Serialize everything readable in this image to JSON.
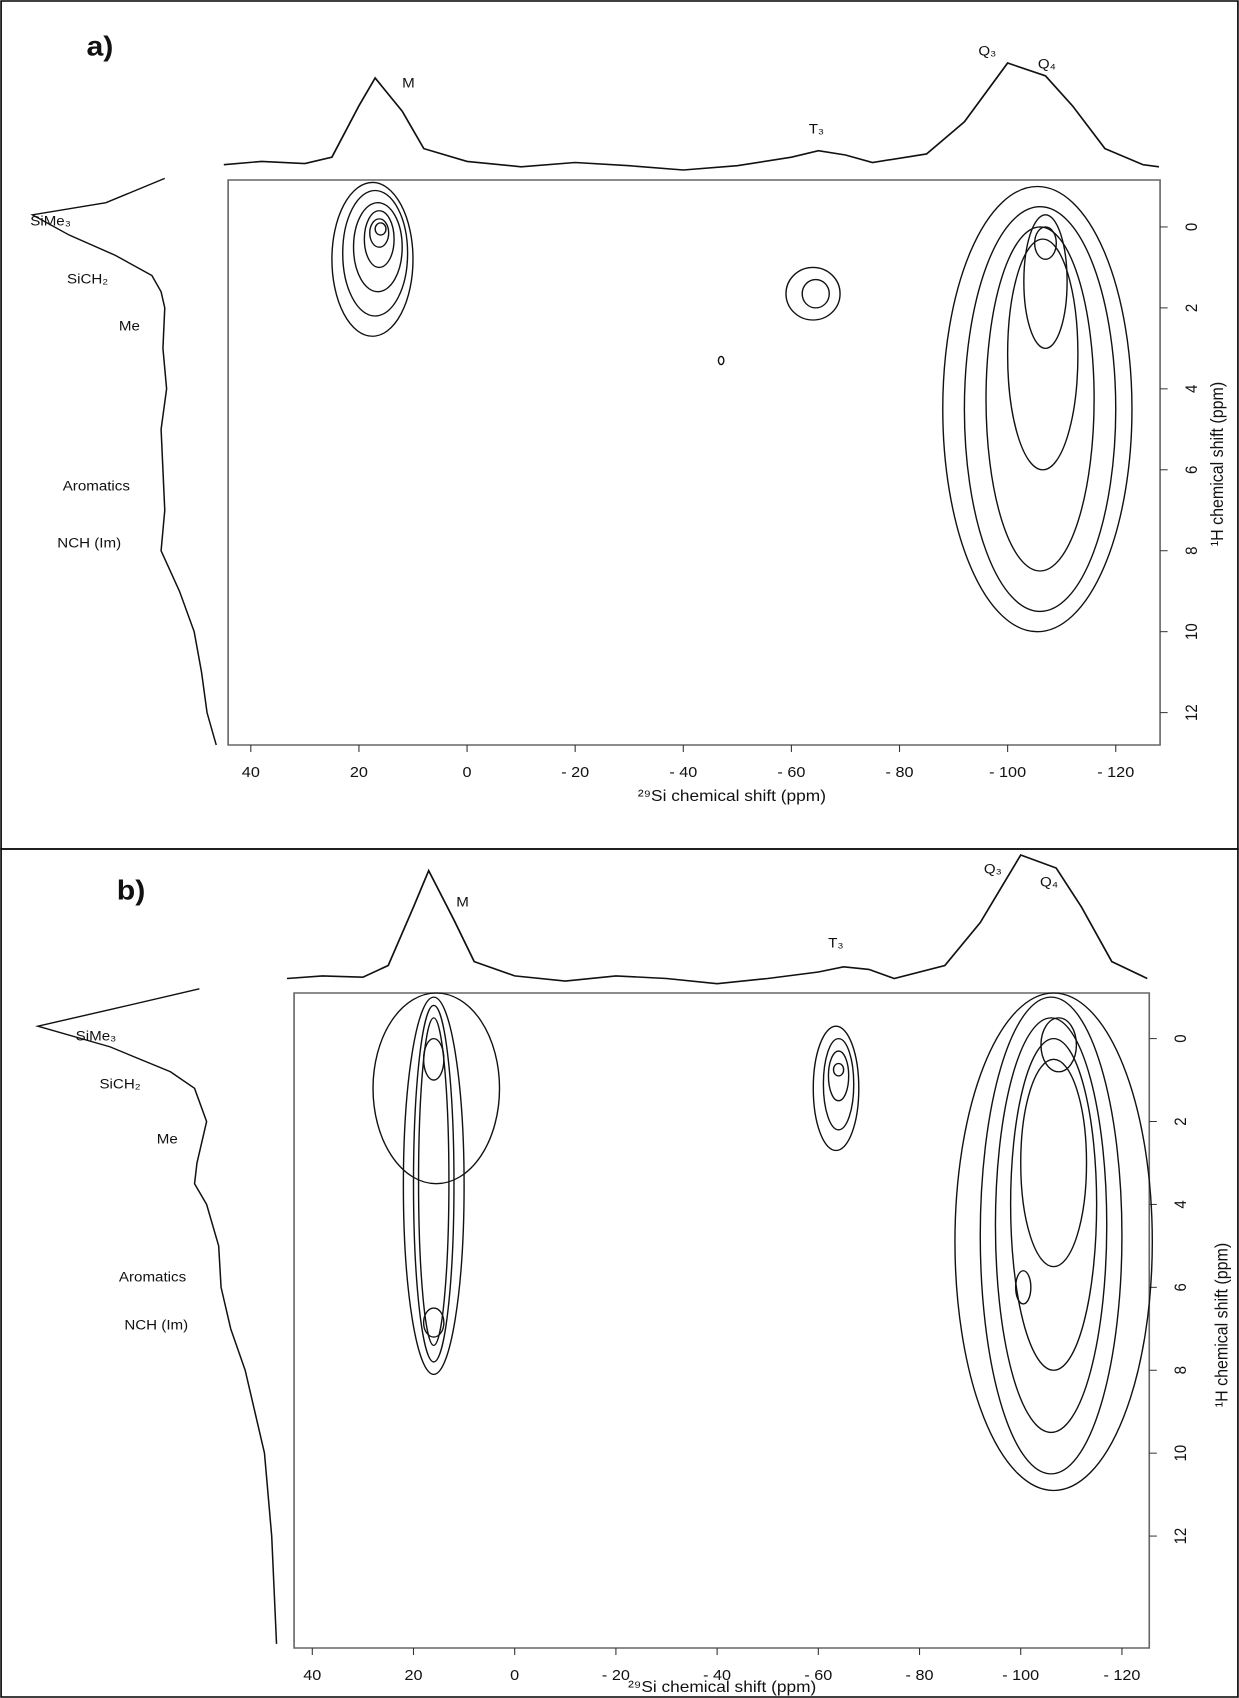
{
  "chart_data": [
    {
      "type": "contour",
      "panel_label": "a)",
      "x_label": "²⁹Si chemical shift (ppm)",
      "y_label": "¹H chemical shift (ppm)",
      "xlim": [
        44.2,
        -128.2
      ],
      "ylim": [
        -1.16,
        12.8
      ],
      "xticks": [
        40,
        20,
        0,
        {
          "value": -20,
          "label": "- 20"
        },
        {
          "value": -40,
          "label": "- 40"
        },
        {
          "value": -60,
          "label": "- 60"
        },
        {
          "value": -80,
          "label": "- 80"
        },
        {
          "value": -100,
          "label": "- 100"
        },
        {
          "value": -120,
          "label": "- 120"
        }
      ],
      "yticks": [
        0,
        2,
        4,
        6,
        8,
        10,
        12
      ],
      "top_labels": [
        "M",
        "T₃",
        "Q₃",
        "Q₄"
      ],
      "left_labels": [
        "SiMe₃",
        "SiCH₂",
        "Me",
        "Aromatics",
        "NCH (Im)"
      ],
      "projection_top": {
        "x": [
          45,
          38,
          30,
          25,
          20,
          17,
          12,
          8,
          0,
          -10,
          -20,
          -30,
          -40,
          -50,
          -60,
          -65,
          -70,
          -75,
          -85,
          -92,
          -100,
          -107,
          -112,
          -118,
          -125,
          -128
        ],
        "values": [
          5,
          8,
          6,
          12,
          60,
          86,
          55,
          20,
          8,
          3,
          7,
          4,
          0,
          4,
          12,
          18,
          14,
          7,
          15,
          45,
          100,
          88,
          60,
          20,
          5,
          3
        ]
      },
      "projection_left": {
        "y": [
          -1.2,
          -0.6,
          -0.3,
          0.2,
          0.7,
          1.2,
          1.6,
          2,
          3,
          4,
          5,
          6,
          7,
          8,
          9,
          10,
          11,
          12,
          12.8
        ],
        "values": [
          28,
          60,
          100,
          80,
          55,
          35,
          30,
          28,
          29,
          27,
          30,
          29,
          28,
          30,
          20,
          12,
          8,
          5,
          0
        ]
      },
      "contours": [
        {
          "x": [
            25,
            10
          ],
          "y": [
            -1.1,
            2.7
          ]
        },
        {
          "x": [
            23,
            11
          ],
          "y": [
            -0.9,
            2.2
          ]
        },
        {
          "x": [
            21,
            12
          ],
          "y": [
            -0.6,
            1.6
          ]
        },
        {
          "x": [
            19,
            13.5
          ],
          "y": [
            -0.4,
            1.0
          ]
        },
        {
          "x": [
            18,
            14.5
          ],
          "y": [
            -0.2,
            0.5
          ]
        },
        {
          "x": [
            17,
            15
          ],
          "y": [
            -0.1,
            0.2
          ]
        },
        {
          "x": [
            -59,
            -69
          ],
          "y": [
            1.0,
            2.3
          ]
        },
        {
          "x": [
            -62,
            -67
          ],
          "y": [
            1.3,
            2.0
          ]
        },
        {
          "x": [
            -46.5,
            -47.5
          ],
          "y": [
            3.2,
            3.4
          ]
        },
        {
          "x": [
            -88,
            -123
          ],
          "y": [
            -1,
            10
          ]
        },
        {
          "x": [
            -92,
            -120
          ],
          "y": [
            -0.5,
            9.5
          ]
        },
        {
          "x": [
            -96,
            -116
          ],
          "y": [
            0,
            8.5
          ]
        },
        {
          "x": [
            -100,
            -113
          ],
          "y": [
            0.3,
            6
          ]
        },
        {
          "x": [
            -103,
            -111
          ],
          "y": [
            -0.3,
            3
          ]
        },
        {
          "x": [
            -105,
            -109
          ],
          "y": [
            0,
            0.8
          ]
        }
      ]
    },
    {
      "type": "contour",
      "panel_label": "b)",
      "x_label": "²⁹Si chemical shift (ppm)",
      "y_label": "¹H chemical shift (ppm)",
      "xlim": [
        43.6,
        -125.4
      ],
      "ylim": [
        -1.1,
        14.7
      ],
      "xticks": [
        40,
        20,
        0,
        {
          "value": -20,
          "label": "- 20"
        },
        {
          "value": -40,
          "label": "- 40"
        },
        {
          "value": -60,
          "label": "- 60"
        },
        {
          "value": -80,
          "label": "- 80"
        },
        {
          "value": -100,
          "label": "- 100"
        },
        {
          "value": -120,
          "label": "- 120"
        }
      ],
      "yticks": [
        0,
        2,
        4,
        6,
        8,
        10,
        12
      ],
      "top_labels": [
        "M",
        "T₃",
        "Q₃",
        "Q₄"
      ],
      "left_labels": [
        "SiMe₃",
        "SiCH₂",
        "Me",
        "Aromatics",
        "NCH (Im)"
      ],
      "projection_top": {
        "x": [
          45,
          38,
          30,
          25,
          20,
          17,
          12,
          8,
          0,
          -10,
          -20,
          -30,
          -40,
          -50,
          -60,
          -65,
          -70,
          -75,
          -85,
          -92,
          -100,
          -107,
          -112,
          -118,
          -125
        ],
        "values": [
          5,
          7,
          6,
          15,
          60,
          88,
          50,
          18,
          7,
          3,
          7,
          5,
          1,
          5,
          10,
          14,
          12,
          5,
          15,
          48,
          100,
          90,
          60,
          18,
          5
        ]
      },
      "projection_left": {
        "y": [
          -1.2,
          -0.7,
          -0.3,
          0.2,
          0.8,
          1.2,
          2,
          3,
          3.5,
          4,
          5,
          6,
          7,
          8,
          9,
          10,
          12,
          14.6
        ],
        "values": [
          33,
          70,
          100,
          70,
          45,
          35,
          30,
          34,
          35,
          30,
          25,
          24,
          20,
          14,
          10,
          6,
          3,
          1
        ]
      },
      "contours": [
        {
          "x": [
            28,
            3
          ],
          "y": [
            -1.1,
            3.5
          ]
        },
        {
          "x": [
            22,
            10
          ],
          "y": [
            -1.0,
            8.1
          ]
        },
        {
          "x": [
            20,
            12
          ],
          "y": [
            -0.8,
            7.8
          ]
        },
        {
          "x": [
            19,
            13
          ],
          "y": [
            -0.5,
            7.4
          ]
        },
        {
          "x": [
            18,
            14
          ],
          "y": [
            0,
            1
          ]
        },
        {
          "x": [
            18,
            14
          ],
          "y": [
            6.5,
            7.2
          ]
        },
        {
          "x": [
            -59,
            -68
          ],
          "y": [
            -0.3,
            2.7
          ]
        },
        {
          "x": [
            -61,
            -67
          ],
          "y": [
            0,
            2.2
          ]
        },
        {
          "x": [
            -62,
            -66
          ],
          "y": [
            0.3,
            1.5
          ]
        },
        {
          "x": [
            -63,
            -65
          ],
          "y": [
            0.6,
            0.9
          ]
        },
        {
          "x": [
            -87,
            -126
          ],
          "y": [
            -1.1,
            10.9
          ]
        },
        {
          "x": [
            -92,
            -120
          ],
          "y": [
            -1,
            10.5
          ]
        },
        {
          "x": [
            -95,
            -117
          ],
          "y": [
            -0.5,
            9.5
          ]
        },
        {
          "x": [
            -98,
            -115
          ],
          "y": [
            0,
            8
          ]
        },
        {
          "x": [
            -100,
            -113
          ],
          "y": [
            0.5,
            5.5
          ]
        },
        {
          "x": [
            -104,
            -111
          ],
          "y": [
            -0.5,
            0.8
          ]
        },
        {
          "x": [
            -99,
            -102
          ],
          "y": [
            5.6,
            6.4
          ]
        }
      ]
    }
  ]
}
